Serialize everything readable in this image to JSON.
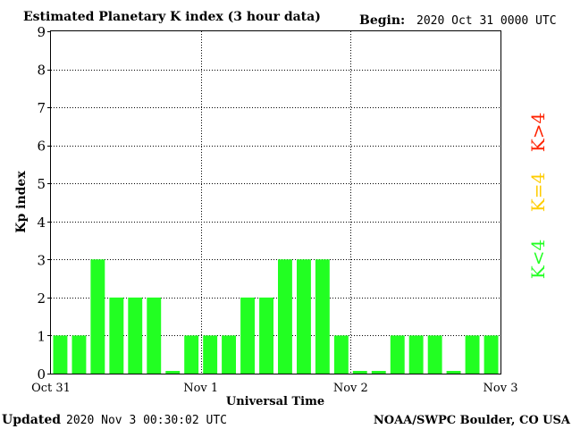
{
  "header": {
    "title": "Estimated Planetary K index (3 hour data)",
    "begin_label": "Begin:",
    "begin_value": "2020 Oct 31 0000 UTC"
  },
  "footer": {
    "updated_label": "Updated",
    "updated_value": "2020 Nov  3 00:30:02 UTC",
    "credit": "NOAA/SWPC Boulder, CO USA"
  },
  "legend": {
    "items": [
      {
        "label": "K<4",
        "color": "#22ff22"
      },
      {
        "label": "K=4",
        "color": "#ffcc00"
      },
      {
        "label": "K>4",
        "color": "#ff2200"
      }
    ]
  },
  "chart_data": {
    "type": "bar",
    "title": "Estimated Planetary K index (3 hour data)",
    "xlabel": "Universal Time",
    "ylabel": "Kp index",
    "ylim": [
      0,
      9
    ],
    "yticks": [
      0,
      1,
      2,
      3,
      4,
      5,
      6,
      7,
      8,
      9
    ],
    "xticks": [
      "Oct 31",
      "Nov 1",
      "Nov 2",
      "Nov 3"
    ],
    "grid": true,
    "bar_color": "#22ff22",
    "series": [
      {
        "values": [
          1,
          1,
          3,
          2,
          2,
          2,
          0.07,
          1,
          1,
          1,
          2,
          2,
          3,
          3,
          3,
          1,
          0.07,
          0.07,
          1,
          1,
          1,
          0.07,
          1,
          1
        ]
      }
    ]
  }
}
